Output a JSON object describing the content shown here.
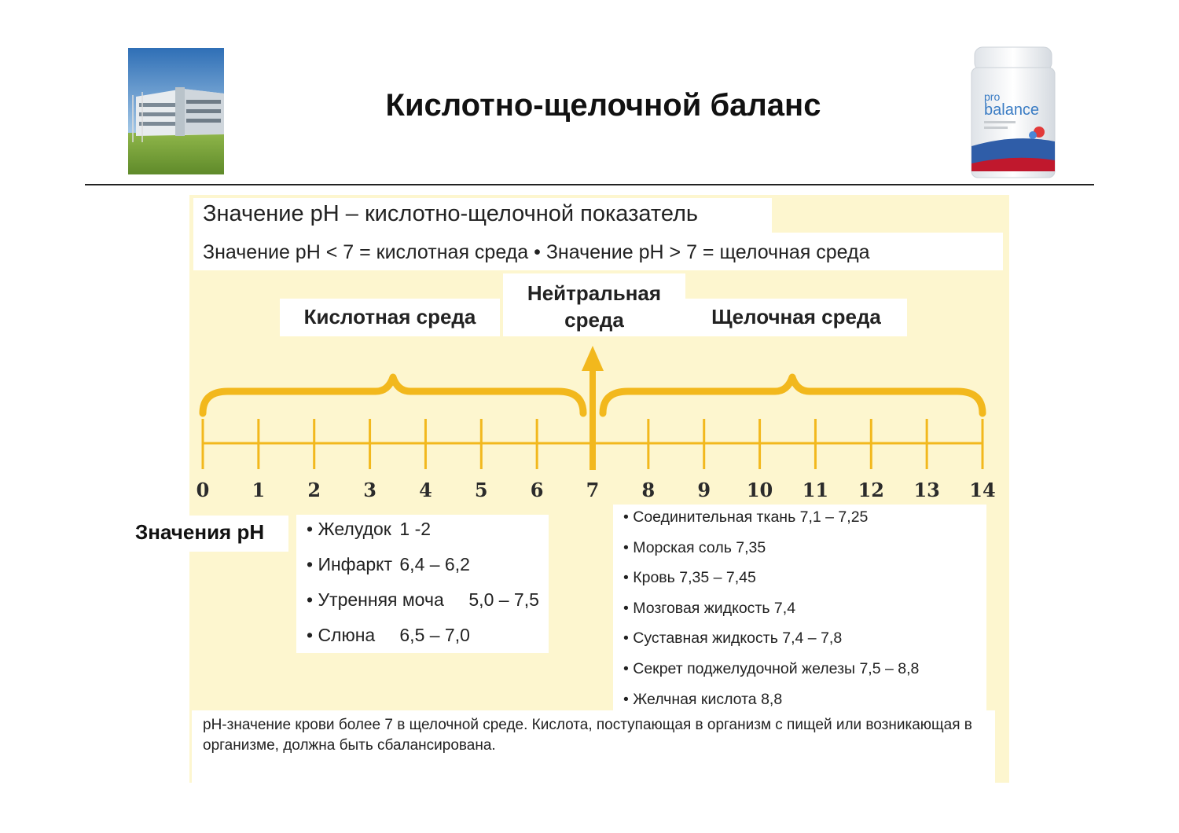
{
  "header": {
    "title": "Кислотно-щелочной баланс",
    "jar_logo": {
      "prefix": "pro",
      "name": "balance"
    }
  },
  "intro": {
    "headline": "Значение pH – кислотно-щелочной показатель",
    "subline": "Значение pH < 7 = кислотная среда • Значение pH > 7 = щелочная среда"
  },
  "scale": {
    "regions": {
      "acid": "Кислотная среда",
      "neutral_line1": "Нейтральная",
      "neutral_line2": "среда",
      "alkaline": "Щелочная среда"
    },
    "ticks": [
      "0",
      "1",
      "2",
      "3",
      "4",
      "5",
      "6",
      "7",
      "8",
      "9",
      "10",
      "11",
      "12",
      "13",
      "14"
    ],
    "neutral_value": 7,
    "min": 0,
    "max": 14
  },
  "values": {
    "heading": "Значения pH",
    "acidic": [
      {
        "name": "• Желудок",
        "value": "1 -2"
      },
      {
        "name": "• Инфаркт",
        "value": "6,4 – 6,2"
      },
      {
        "name": "• Утренняя моча",
        "value": "5,0 – 7,5"
      },
      {
        "name": "• Слюна",
        "value": "6,5 – 7,0"
      }
    ],
    "alkaline": [
      "• Соединительная ткань 7,1 – 7,25",
      "• Морская соль 7,35",
      "• Кровь 7,35 – 7,45",
      "• Мозговая жидкость 7,4",
      "• Суставная жидкость 7,4 – 7,8",
      "• Секрет поджелудочной железы 7,5 – 8,8",
      "• Желчная кислота 8,8"
    ]
  },
  "note": "pH-значение крови более 7 в щелочной среде. Кислота, поступающая в организм с пищей или возникающая в организме, должна быть сбалансирована.",
  "colors": {
    "accent": "#f2b81d",
    "panel": "#fdf6cf"
  }
}
